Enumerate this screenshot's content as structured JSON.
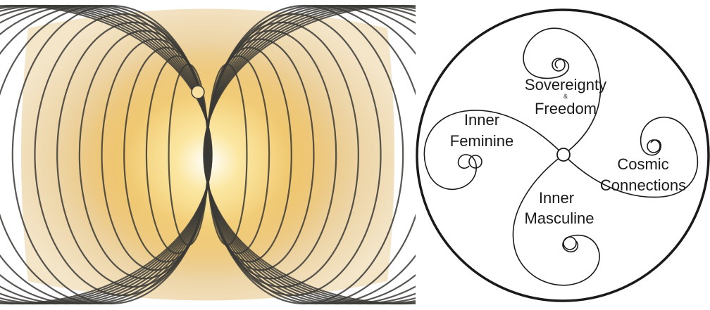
{
  "left_figure": {
    "icon": "toroidal-field-icon",
    "colors": {
      "glow_center": "#fff6c8",
      "glow_mid": "#f2c45a",
      "glow_outer": "#e7cfa0",
      "field_lines": "#3b3a36"
    }
  },
  "right_figure": {
    "labels": {
      "sovereignty": "Sovereignty",
      "ampersand": "&",
      "freedom": "Freedom",
      "inner_feminine_line1": "Inner",
      "inner_feminine_line2": "Feminine",
      "cosmic_line1": "Cosmic",
      "cosmic_line2": "Connections",
      "inner_masculine_line1": "Inner",
      "inner_masculine_line2": "Masculine"
    },
    "colors": {
      "stroke": "#1a1a1a",
      "background": "#ffffff"
    }
  }
}
